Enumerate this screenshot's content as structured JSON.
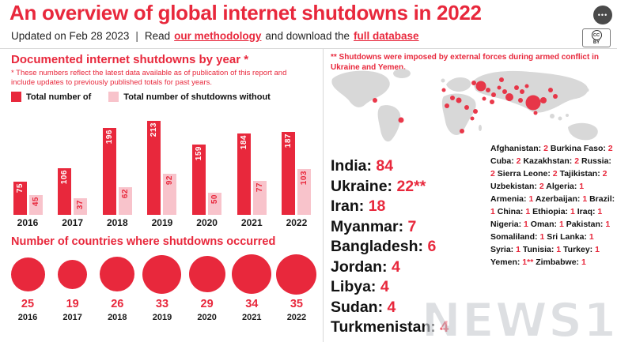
{
  "accent_color": "#e8283c",
  "pink_color": "#f8c3cb",
  "header": {
    "title": "An overview of global internet shutdowns in 2022",
    "more_label": "•••",
    "updated_text": "Updated on Feb 28 2023",
    "divider": "|",
    "read_prefix": "Read",
    "methodology_link": "our methodology",
    "middle_text": "and download the",
    "database_link": "full database",
    "cc_badge": "BY"
  },
  "left_panel": {
    "chart_title": "Documented internet shutdowns by year *",
    "chart_note": "* These numbers reflect the latest data available as of publication of this report and include updates to previously published totals for past years.",
    "legend": [
      {
        "label": "Total number of",
        "swatch": "red"
      },
      {
        "label": "Total number of shutdowns without",
        "swatch": "pink"
      }
    ],
    "countries_title": "Number of countries where shutdowns occurred"
  },
  "right_panel": {
    "note": "** Shutdowns were imposed by external forces during armed conflict in Ukraine and Yemen.",
    "major_countries": [
      {
        "name": "India",
        "value": "84"
      },
      {
        "name": "Ukraine",
        "value": "22**"
      },
      {
        "name": "Iran",
        "value": "18"
      },
      {
        "name": "Myanmar",
        "value": "7"
      },
      {
        "name": "Bangladesh",
        "value": "6"
      },
      {
        "name": "Jordan",
        "value": "4"
      },
      {
        "name": "Libya",
        "value": "4"
      },
      {
        "name": "Sudan",
        "value": "4"
      },
      {
        "name": "Turkmenistan",
        "value": "4"
      }
    ],
    "minor_countries": [
      {
        "name": "Afghanistan",
        "value": "2"
      },
      {
        "name": "Burkina Faso",
        "value": "2"
      },
      {
        "name": "Cuba",
        "value": "2"
      },
      {
        "name": "Kazakhstan",
        "value": "2"
      },
      {
        "name": "Russia",
        "value": "2"
      },
      {
        "name": "Sierra Leone",
        "value": "2"
      },
      {
        "name": "Tajikistan",
        "value": "2"
      },
      {
        "name": "Uzbekistan",
        "value": "2"
      },
      {
        "name": "Algeria",
        "value": "1"
      },
      {
        "name": "Armenia",
        "value": "1"
      },
      {
        "name": "Azerbaijan",
        "value": "1"
      },
      {
        "name": "Brazil",
        "value": "1"
      },
      {
        "name": "China",
        "value": "1"
      },
      {
        "name": "Ethiopia",
        "value": "1"
      },
      {
        "name": "Iraq",
        "value": "1"
      },
      {
        "name": "Nigeria",
        "value": "1"
      },
      {
        "name": "Oman",
        "value": "1"
      },
      {
        "name": "Pakistan",
        "value": "1"
      },
      {
        "name": "Somaliland",
        "value": "1"
      },
      {
        "name": "Sri Lanka",
        "value": "1"
      },
      {
        "name": "Syria",
        "value": "1"
      },
      {
        "name": "Tunisia",
        "value": "1"
      },
      {
        "name": "Turkey",
        "value": "1"
      },
      {
        "name": "Yemen",
        "value": "1**"
      },
      {
        "name": "Zimbabwe",
        "value": "1"
      }
    ],
    "map_dots": [
      [
        62,
        43,
        3
      ],
      [
        95,
        68,
        3.5
      ],
      [
        149,
        30,
        2.5
      ],
      [
        160,
        40,
        3
      ],
      [
        153,
        50,
        3
      ],
      [
        168,
        43,
        3.5
      ],
      [
        178,
        52,
        3
      ],
      [
        189,
        57,
        3
      ],
      [
        185,
        66,
        2.5
      ],
      [
        172,
        82,
        3
      ],
      [
        196,
        25,
        6.5
      ],
      [
        187,
        21,
        3
      ],
      [
        205,
        30,
        3
      ],
      [
        212,
        36,
        3
      ],
      [
        219,
        27,
        2.5
      ],
      [
        226,
        32,
        3
      ],
      [
        232,
        39,
        5
      ],
      [
        241,
        27,
        3
      ],
      [
        248,
        32,
        3
      ],
      [
        254,
        25,
        2.5
      ],
      [
        262,
        46,
        9.5
      ],
      [
        275,
        43,
        4
      ],
      [
        284,
        30,
        3
      ],
      [
        222,
        17,
        3
      ],
      [
        265,
        59,
        2.5
      ],
      [
        246,
        43,
        3
      ],
      [
        210,
        45,
        3
      ],
      [
        200,
        41,
        2.5
      ],
      [
        290,
        38,
        3
      ]
    ]
  },
  "watermark": "NEWS1",
  "chart_data": [
    {
      "type": "bar",
      "title": "Documented internet shutdowns by year *",
      "categories": [
        "2016",
        "2017",
        "2018",
        "2019",
        "2020",
        "2021",
        "2022"
      ],
      "series": [
        {
          "name": "Total number of",
          "values": [
            75,
            106,
            196,
            213,
            159,
            184,
            187
          ],
          "color": "#e8283c"
        },
        {
          "name": "Total number of shutdowns without",
          "values": [
            45,
            37,
            62,
            92,
            50,
            77,
            103
          ],
          "color": "#f8c3cb"
        }
      ],
      "ylim": [
        0,
        220
      ],
      "value_labels": "rotated",
      "grid": false,
      "legend_position": "top"
    },
    {
      "type": "bubble",
      "title": "Number of countries where shutdowns occurred",
      "categories": [
        "2016",
        "2017",
        "2018",
        "2019",
        "2020",
        "2021",
        "2022"
      ],
      "values": [
        25,
        19,
        26,
        33,
        29,
        34,
        35
      ]
    }
  ]
}
